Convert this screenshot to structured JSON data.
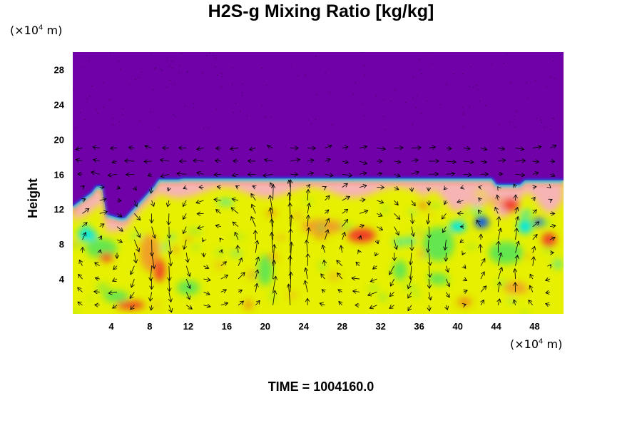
{
  "title": "H2S-g Mixing Ratio [kg/kg]",
  "y_unit": {
    "prefix": "(×10",
    "exp": "4",
    "suffix": " m)"
  },
  "x_unit": {
    "prefix": "(×10",
    "exp": "4",
    "suffix": " m)"
  },
  "ylabel": "Height",
  "time_label": "TIME = 1004160.0",
  "chart_data": {
    "type": "heatmap",
    "overlay": "velocity vectors",
    "title": "H2S-g Mixing Ratio [kg/kg]",
    "xlabel": "",
    "ylabel": "Height",
    "xlim": [
      0,
      51
    ],
    "ylim": [
      0,
      30
    ],
    "x_ticks": [
      "4",
      "8",
      "12",
      "16",
      "20",
      "24",
      "28",
      "32",
      "36",
      "40",
      "44",
      "48"
    ],
    "y_ticks": [
      "4",
      "8",
      "12",
      "16",
      "20",
      "24",
      "28"
    ],
    "upper_layer_color": "#7000a8",
    "interface_height": 15.5,
    "colors": {
      "purple": "#7000a8",
      "pink": "#f6b4b4",
      "red": "#f03c28",
      "orange": "#f0a028",
      "yellow": "#e6f000",
      "green": "#64e650",
      "cyan": "#00e6e6",
      "blue": "#0050f0"
    }
  }
}
